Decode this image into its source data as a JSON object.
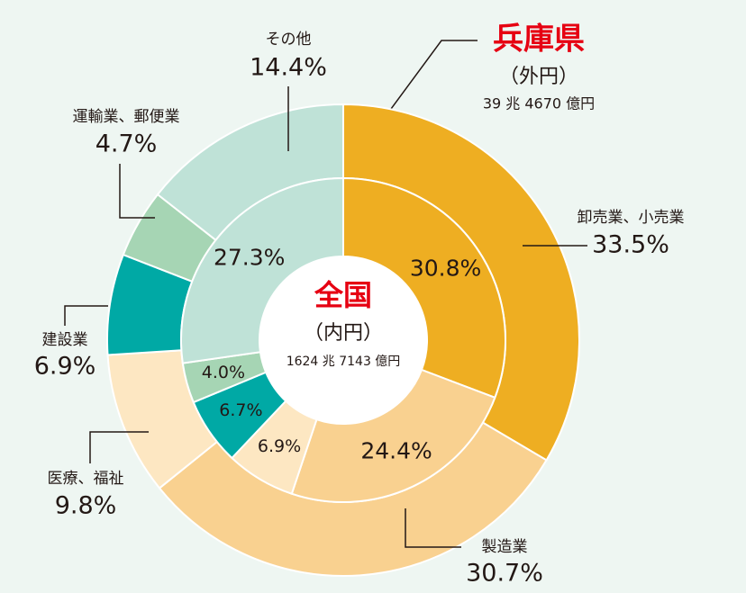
{
  "chart_data": {
    "type": "donut",
    "categories": [
      "卸売業、小売業",
      "製造業",
      "医療、福祉",
      "建設業",
      "運輸業、郵便業",
      "その他"
    ],
    "colors": [
      "#eeae22",
      "#f9d190",
      "#fde7c2",
      "#00a9a5",
      "#a6d5b4",
      "#bfe2d7"
    ],
    "series": [
      {
        "name": "兵庫県",
        "ring": "（外円）",
        "total": "39 兆 4670 億円",
        "values": [
          33.5,
          30.7,
          9.8,
          6.9,
          4.7,
          14.4
        ],
        "value_labels": [
          "33.5%",
          "30.7%",
          "9.8%",
          "6.9%",
          "4.7%",
          "14.4%"
        ]
      },
      {
        "name": "全国",
        "ring": "（内円）",
        "total": "1624 兆 7143 億円",
        "values": [
          30.8,
          24.4,
          6.9,
          6.7,
          4.0,
          27.3
        ],
        "value_labels": [
          "30.8%",
          "24.4%",
          "6.9%",
          "6.7%",
          "4.0%",
          "27.3%"
        ]
      }
    ]
  }
}
